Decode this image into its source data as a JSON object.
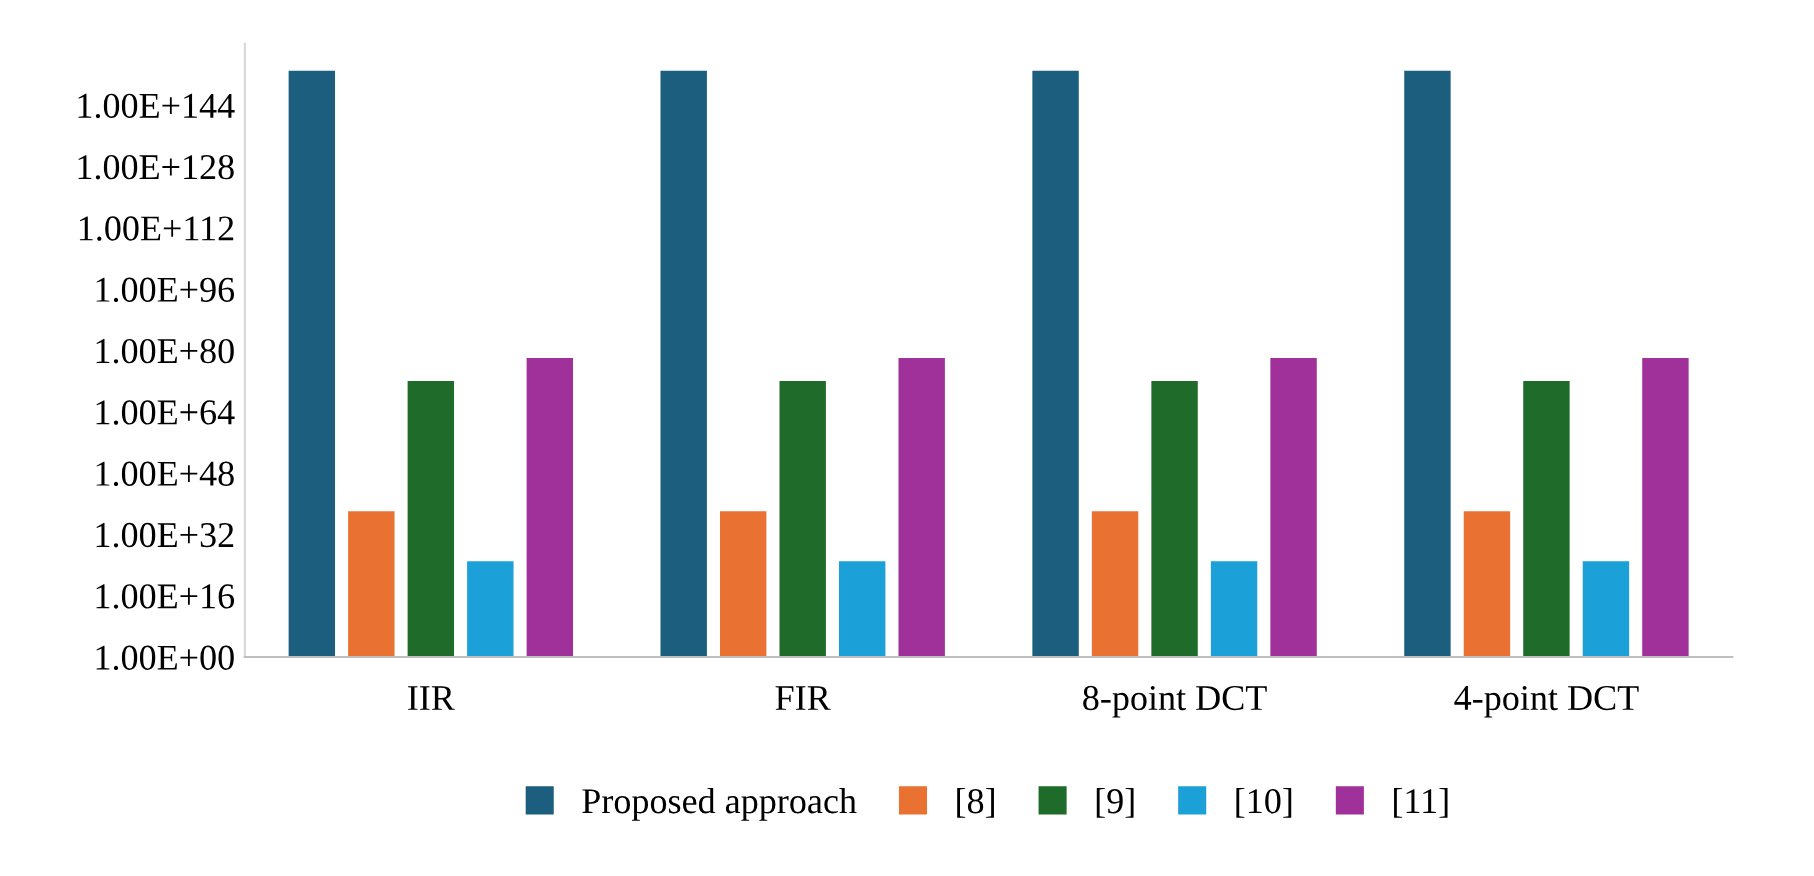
{
  "chart_data": {
    "type": "bar",
    "log": "y",
    "categories": [
      "IIR",
      "FIR",
      "8-point DCT",
      "4-point DCT"
    ],
    "series": [
      {
        "name": "Proposed approach",
        "color": "#1b5e7e",
        "values": [
          1e+153,
          1e+153,
          1e+153,
          1e+153
        ]
      },
      {
        "name": "[8]",
        "color": "#e97132",
        "values": [
          1e+38,
          1e+38,
          1e+38,
          1e+38
        ]
      },
      {
        "name": "[9]",
        "color": "#1e6b2a",
        "values": [
          1e+72,
          1e+72,
          1e+72,
          1e+72
        ]
      },
      {
        "name": "[10]",
        "color": "#1ca0d8",
        "values": [
          1e+25,
          1e+25,
          1e+25,
          1e+25
        ]
      },
      {
        "name": "[11]",
        "color": "#a0309a",
        "values": [
          1e+78,
          1e+78,
          1e+78,
          1e+78
        ]
      }
    ],
    "ylim": [
      1,
      1e+160
    ],
    "yticks": [
      {
        "value": 1,
        "label": "1.00E+00"
      },
      {
        "value": 1e+16,
        "label": "1.00E+16"
      },
      {
        "value": 1e+32,
        "label": "1.00E+32"
      },
      {
        "value": 1e+48,
        "label": "1.00E+48"
      },
      {
        "value": 1e+64,
        "label": "1.00E+64"
      },
      {
        "value": 1e+80,
        "label": "1.00E+80"
      },
      {
        "value": 1e+96,
        "label": "1.00E+96"
      },
      {
        "value": 1e+112,
        "label": "1.00E+112"
      },
      {
        "value": 1e+128,
        "label": "1.00E+128"
      },
      {
        "value": 1e+144,
        "label": "1.00E+144"
      }
    ],
    "legend": "bottom"
  }
}
